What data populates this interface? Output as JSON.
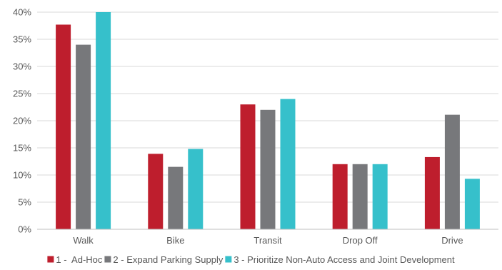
{
  "chart_data": {
    "type": "bar",
    "categories": [
      "Walk",
      "Bike",
      "Transit",
      "Drop Off",
      "Drive"
    ],
    "series": [
      {
        "name": "1 -  Ad-Hoc",
        "color": "#BE1E2D",
        "values": [
          37.7,
          13.9,
          23.0,
          12.0,
          13.3
        ]
      },
      {
        "name": "2 - Expand Parking Supply",
        "color": "#77787B",
        "values": [
          34.0,
          11.5,
          22.0,
          12.0,
          21.1
        ]
      },
      {
        "name": "3 - Prioritize Non-Auto Access and Joint Development",
        "color": "#36C0CB",
        "values": [
          40.0,
          14.8,
          24.0,
          12.0,
          9.3
        ]
      }
    ],
    "title": "",
    "xlabel": "",
    "ylabel": "",
    "ylim": [
      0,
      40
    ],
    "yticks": [
      0,
      5,
      10,
      15,
      20,
      25,
      30,
      35,
      40
    ],
    "ytick_labels": [
      "0%",
      "5%",
      "10%",
      "15%",
      "20%",
      "25%",
      "30%",
      "35%",
      "40%"
    ],
    "grid": true,
    "gridline_color": "#D9D9D9",
    "legend_position": "bottom"
  }
}
